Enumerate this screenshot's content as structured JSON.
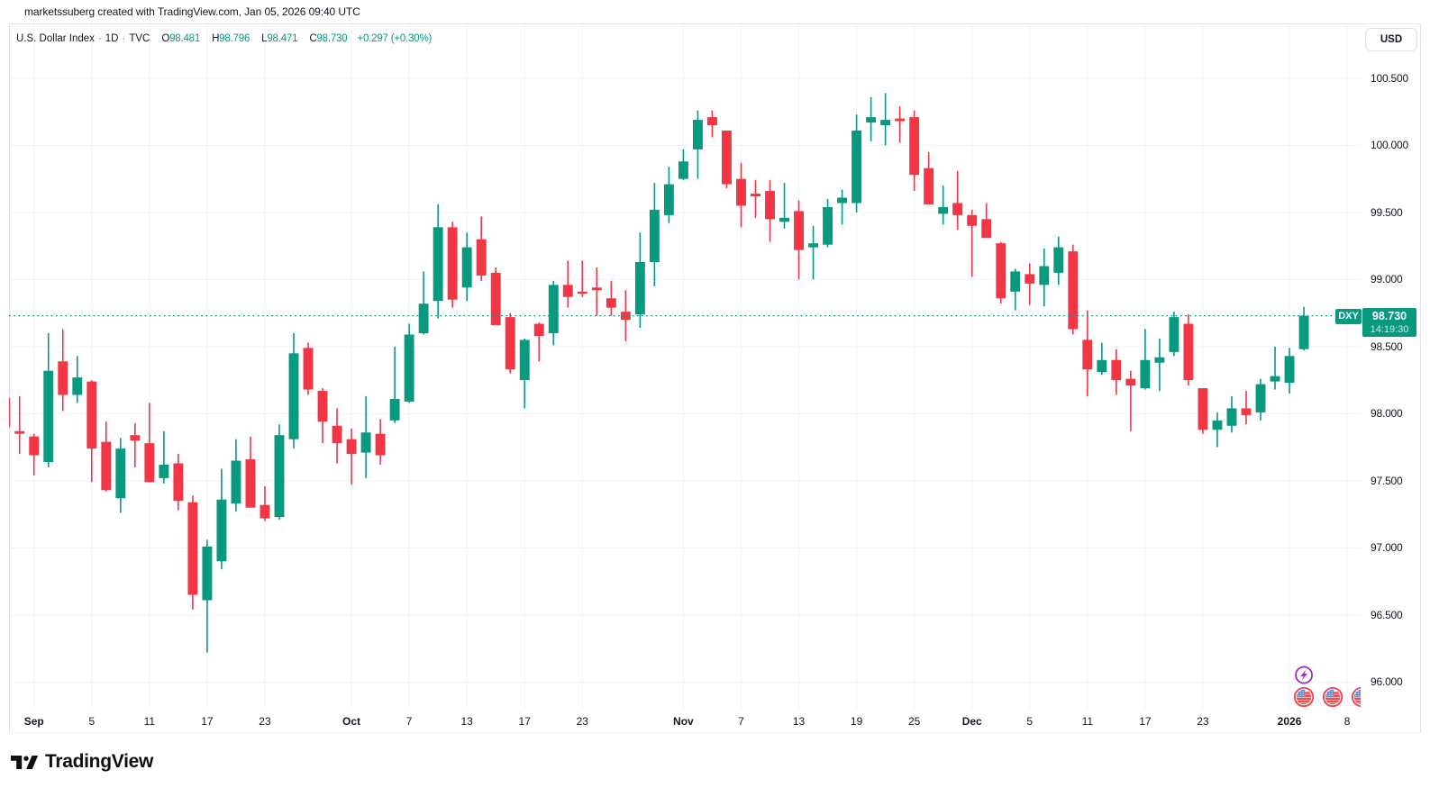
{
  "attribution": {
    "text": "marketssuberg created with TradingView.com, Jan 05, 2026 09:40 UTC"
  },
  "legend": {
    "symbol": "U.S. Dollar Index",
    "separator": "·",
    "interval": "1D",
    "exchange": "TVC",
    "ohlc": [
      {
        "key": "O",
        "value": "98.481"
      },
      {
        "key": "H",
        "value": "98.796"
      },
      {
        "key": "L",
        "value": "98.471"
      },
      {
        "key": "C",
        "value": "98.730"
      }
    ],
    "change": "+0.297 (+0.30%)"
  },
  "price_axis": {
    "currency_label": "USD",
    "tick_labels": [
      "100.500",
      "100.000",
      "99.500",
      "99.000",
      "98.500",
      "98.000",
      "97.500",
      "97.000",
      "96.500",
      "96.000"
    ],
    "tick_values": [
      100.5,
      100.0,
      99.5,
      99.0,
      98.5,
      98.0,
      97.5,
      97.0,
      96.5,
      96.0
    ],
    "last_price_marker": {
      "symbol": "DXY",
      "price": "98.730",
      "time": "14:19:30",
      "value": 98.73
    }
  },
  "time_axis": {
    "labels": [
      {
        "text": "Sep",
        "index": 2,
        "bold": true
      },
      {
        "text": "5",
        "index": 6,
        "bold": false
      },
      {
        "text": "11",
        "index": 10,
        "bold": false
      },
      {
        "text": "17",
        "index": 14,
        "bold": false
      },
      {
        "text": "23",
        "index": 18,
        "bold": false
      },
      {
        "text": "Oct",
        "index": 24,
        "bold": true
      },
      {
        "text": "7",
        "index": 28,
        "bold": false
      },
      {
        "text": "13",
        "index": 32,
        "bold": false
      },
      {
        "text": "17",
        "index": 36,
        "bold": false
      },
      {
        "text": "23",
        "index": 40,
        "bold": false
      },
      {
        "text": "Nov",
        "index": 47,
        "bold": true
      },
      {
        "text": "7",
        "index": 51,
        "bold": false
      },
      {
        "text": "13",
        "index": 55,
        "bold": false
      },
      {
        "text": "19",
        "index": 59,
        "bold": false
      },
      {
        "text": "25",
        "index": 63,
        "bold": false
      },
      {
        "text": "Dec",
        "index": 67,
        "bold": true
      },
      {
        "text": "5",
        "index": 71,
        "bold": false
      },
      {
        "text": "11",
        "index": 75,
        "bold": false
      },
      {
        "text": "17",
        "index": 79,
        "bold": false
      },
      {
        "text": "23",
        "index": 83,
        "bold": false
      },
      {
        "text": "2026",
        "index": 89,
        "bold": true
      },
      {
        "text": "8",
        "index": 93,
        "bold": false
      }
    ]
  },
  "markers": {
    "lightning_color": "#a22ac4",
    "flag_ring_color": "#f24350",
    "flag_blue": "#4087f5",
    "flag_red": "#f04e4e",
    "event_icons": [
      {
        "type": "lightning-icon",
        "index": 90,
        "row": "upper"
      },
      {
        "type": "us-flag-icon",
        "index": 90,
        "row": "lower"
      },
      {
        "type": "us-flag-icon",
        "index": 92,
        "row": "lower"
      },
      {
        "type": "us-flag-icon",
        "index": 94,
        "row": "lower"
      }
    ]
  },
  "chart_data": {
    "type": "candlestick",
    "title": "U.S. Dollar Index · 1D · TVC",
    "symbol": "DXY",
    "interval": "1D",
    "exchange": "TVC",
    "up_color": "#089981",
    "down_color": "#f23645",
    "grid": true,
    "ylim": [
      95.8,
      100.9
    ],
    "last_price_line": {
      "value": 98.73,
      "style": "dotted",
      "color": "#089981"
    },
    "candles": [
      {
        "date": "Aug 28",
        "o": 98.12,
        "h": 98.12,
        "l": 97.89,
        "c": 97.9
      },
      {
        "date": "Aug 29",
        "o": 97.87,
        "h": 98.13,
        "l": 97.7,
        "c": 97.85
      },
      {
        "date": "Sep 1",
        "o": 97.83,
        "h": 97.85,
        "l": 97.54,
        "c": 97.69
      },
      {
        "date": "Sep 2",
        "o": 97.64,
        "h": 98.6,
        "l": 97.6,
        "c": 98.32
      },
      {
        "date": "Sep 3",
        "o": 98.39,
        "h": 98.63,
        "l": 98.02,
        "c": 98.14
      },
      {
        "date": "Sep 4",
        "o": 98.14,
        "h": 98.43,
        "l": 98.08,
        "c": 98.27
      },
      {
        "date": "Sep 5",
        "o": 98.24,
        "h": 98.25,
        "l": 97.49,
        "c": 97.74
      },
      {
        "date": "Sep 8",
        "o": 97.79,
        "h": 97.94,
        "l": 97.42,
        "c": 97.43
      },
      {
        "date": "Sep 9",
        "o": 97.37,
        "h": 97.82,
        "l": 97.26,
        "c": 97.74
      },
      {
        "date": "Sep 10",
        "o": 97.84,
        "h": 97.93,
        "l": 97.6,
        "c": 97.8
      },
      {
        "date": "Sep 11",
        "o": 97.78,
        "h": 98.08,
        "l": 97.49,
        "c": 97.49
      },
      {
        "date": "Sep 12",
        "o": 97.52,
        "h": 97.87,
        "l": 97.48,
        "c": 97.62
      },
      {
        "date": "Sep 15",
        "o": 97.63,
        "h": 97.7,
        "l": 97.28,
        "c": 97.35
      },
      {
        "date": "Sep 16",
        "o": 97.34,
        "h": 97.39,
        "l": 96.54,
        "c": 96.65
      },
      {
        "date": "Sep 17",
        "o": 96.61,
        "h": 97.06,
        "l": 96.22,
        "c": 97.01
      },
      {
        "date": "Sep 18",
        "o": 96.9,
        "h": 97.59,
        "l": 96.84,
        "c": 97.36
      },
      {
        "date": "Sep 19",
        "o": 97.33,
        "h": 97.81,
        "l": 97.27,
        "c": 97.65
      },
      {
        "date": "Sep 22",
        "o": 97.66,
        "h": 97.83,
        "l": 97.3,
        "c": 97.3
      },
      {
        "date": "Sep 23",
        "o": 97.32,
        "h": 97.46,
        "l": 97.2,
        "c": 97.22
      },
      {
        "date": "Sep 24",
        "o": 97.23,
        "h": 97.92,
        "l": 97.21,
        "c": 97.84
      },
      {
        "date": "Sep 25",
        "o": 97.81,
        "h": 98.6,
        "l": 97.74,
        "c": 98.45
      },
      {
        "date": "Sep 26",
        "o": 98.49,
        "h": 98.53,
        "l": 98.14,
        "c": 98.18
      },
      {
        "date": "Sep 29",
        "o": 98.17,
        "h": 98.19,
        "l": 97.78,
        "c": 97.94
      },
      {
        "date": "Sep 30",
        "o": 97.91,
        "h": 98.04,
        "l": 97.63,
        "c": 97.78
      },
      {
        "date": "Oct 1",
        "o": 97.81,
        "h": 97.89,
        "l": 97.47,
        "c": 97.7
      },
      {
        "date": "Oct 2",
        "o": 97.71,
        "h": 98.13,
        "l": 97.52,
        "c": 97.86
      },
      {
        "date": "Oct 3",
        "o": 97.85,
        "h": 97.96,
        "l": 97.62,
        "c": 97.69
      },
      {
        "date": "Oct 6",
        "o": 97.95,
        "h": 98.5,
        "l": 97.93,
        "c": 98.11
      },
      {
        "date": "Oct 7",
        "o": 98.09,
        "h": 98.67,
        "l": 98.08,
        "c": 98.59
      },
      {
        "date": "Oct 8",
        "o": 98.6,
        "h": 99.06,
        "l": 98.59,
        "c": 98.82
      },
      {
        "date": "Oct 9",
        "o": 98.84,
        "h": 99.56,
        "l": 98.71,
        "c": 99.39
      },
      {
        "date": "Oct 10",
        "o": 99.39,
        "h": 99.43,
        "l": 98.79,
        "c": 98.85
      },
      {
        "date": "Oct 13",
        "o": 98.94,
        "h": 99.35,
        "l": 98.84,
        "c": 99.24
      },
      {
        "date": "Oct 14",
        "o": 99.3,
        "h": 99.47,
        "l": 98.99,
        "c": 99.03
      },
      {
        "date": "Oct 15",
        "o": 99.05,
        "h": 99.09,
        "l": 98.66,
        "c": 98.66
      },
      {
        "date": "Oct 16",
        "o": 98.72,
        "h": 98.75,
        "l": 98.3,
        "c": 98.33
      },
      {
        "date": "Oct 17",
        "o": 98.25,
        "h": 98.56,
        "l": 98.04,
        "c": 98.55
      },
      {
        "date": "Oct 20",
        "o": 98.67,
        "h": 98.68,
        "l": 98.39,
        "c": 98.58
      },
      {
        "date": "Oct 21",
        "o": 98.6,
        "h": 98.99,
        "l": 98.51,
        "c": 98.96
      },
      {
        "date": "Oct 22",
        "o": 98.96,
        "h": 99.14,
        "l": 98.79,
        "c": 98.87
      },
      {
        "date": "Oct 23",
        "o": 98.91,
        "h": 99.14,
        "l": 98.87,
        "c": 98.9
      },
      {
        "date": "Oct 24",
        "o": 98.94,
        "h": 99.09,
        "l": 98.73,
        "c": 98.92
      },
      {
        "date": "Oct 27",
        "o": 98.86,
        "h": 98.99,
        "l": 98.73,
        "c": 98.79
      },
      {
        "date": "Oct 28",
        "o": 98.76,
        "h": 98.92,
        "l": 98.54,
        "c": 98.7
      },
      {
        "date": "Oct 29",
        "o": 98.74,
        "h": 99.35,
        "l": 98.64,
        "c": 99.13
      },
      {
        "date": "Oct 30",
        "o": 99.13,
        "h": 99.72,
        "l": 98.95,
        "c": 99.52
      },
      {
        "date": "Oct 31",
        "o": 99.48,
        "h": 99.84,
        "l": 99.42,
        "c": 99.71
      },
      {
        "date": "Nov 3",
        "o": 99.75,
        "h": 99.97,
        "l": 99.74,
        "c": 99.88
      },
      {
        "date": "Nov 4",
        "o": 99.97,
        "h": 100.26,
        "l": 99.75,
        "c": 100.19
      },
      {
        "date": "Nov 5",
        "o": 100.21,
        "h": 100.26,
        "l": 100.06,
        "c": 100.15
      },
      {
        "date": "Nov 6",
        "o": 100.11,
        "h": 100.11,
        "l": 99.68,
        "c": 99.71
      },
      {
        "date": "Nov 7",
        "o": 99.75,
        "h": 99.87,
        "l": 99.39,
        "c": 99.55
      },
      {
        "date": "Nov 10",
        "o": 99.64,
        "h": 99.74,
        "l": 99.46,
        "c": 99.62
      },
      {
        "date": "Nov 11",
        "o": 99.66,
        "h": 99.74,
        "l": 99.28,
        "c": 99.45
      },
      {
        "date": "Nov 12",
        "o": 99.43,
        "h": 99.72,
        "l": 99.38,
        "c": 99.46
      },
      {
        "date": "Nov 13",
        "o": 99.51,
        "h": 99.59,
        "l": 99.0,
        "c": 99.22
      },
      {
        "date": "Nov 14",
        "o": 99.24,
        "h": 99.4,
        "l": 99.0,
        "c": 99.27
      },
      {
        "date": "Nov 17",
        "o": 99.26,
        "h": 99.6,
        "l": 99.24,
        "c": 99.54
      },
      {
        "date": "Nov 18",
        "o": 99.57,
        "h": 99.67,
        "l": 99.41,
        "c": 99.61
      },
      {
        "date": "Nov 19",
        "o": 99.57,
        "h": 100.23,
        "l": 99.5,
        "c": 100.11
      },
      {
        "date": "Nov 20",
        "o": 100.17,
        "h": 100.36,
        "l": 100.03,
        "c": 100.21
      },
      {
        "date": "Nov 21",
        "o": 100.15,
        "h": 100.39,
        "l": 100.0,
        "c": 100.19
      },
      {
        "date": "Nov 24",
        "o": 100.2,
        "h": 100.29,
        "l": 100.02,
        "c": 100.18
      },
      {
        "date": "Nov 25",
        "o": 100.21,
        "h": 100.26,
        "l": 99.66,
        "c": 99.78
      },
      {
        "date": "Nov 26",
        "o": 99.83,
        "h": 99.95,
        "l": 99.56,
        "c": 99.56
      },
      {
        "date": "Nov 27",
        "o": 99.49,
        "h": 99.7,
        "l": 99.41,
        "c": 99.54
      },
      {
        "date": "Nov 28",
        "o": 99.57,
        "h": 99.81,
        "l": 99.37,
        "c": 99.48
      },
      {
        "date": "Dec 1",
        "o": 99.48,
        "h": 99.52,
        "l": 99.02,
        "c": 99.4
      },
      {
        "date": "Dec 2",
        "o": 99.45,
        "h": 99.57,
        "l": 99.31,
        "c": 99.31
      },
      {
        "date": "Dec 3",
        "o": 99.27,
        "h": 99.28,
        "l": 98.82,
        "c": 98.86
      },
      {
        "date": "Dec 4",
        "o": 98.91,
        "h": 99.08,
        "l": 98.77,
        "c": 99.06
      },
      {
        "date": "Dec 5",
        "o": 99.04,
        "h": 99.12,
        "l": 98.81,
        "c": 98.97
      },
      {
        "date": "Dec 8",
        "o": 98.96,
        "h": 99.23,
        "l": 98.8,
        "c": 99.1
      },
      {
        "date": "Dec 9",
        "o": 99.05,
        "h": 99.32,
        "l": 98.96,
        "c": 99.24
      },
      {
        "date": "Dec 10",
        "o": 99.21,
        "h": 99.26,
        "l": 98.59,
        "c": 98.63
      },
      {
        "date": "Dec 11",
        "o": 98.55,
        "h": 98.77,
        "l": 98.13,
        "c": 98.33
      },
      {
        "date": "Dec 12",
        "o": 98.31,
        "h": 98.53,
        "l": 98.29,
        "c": 98.4
      },
      {
        "date": "Dec 15",
        "o": 98.4,
        "h": 98.48,
        "l": 98.14,
        "c": 98.25
      },
      {
        "date": "Dec 16",
        "o": 98.26,
        "h": 98.32,
        "l": 97.87,
        "c": 98.21
      },
      {
        "date": "Dec 17",
        "o": 98.19,
        "h": 98.63,
        "l": 98.18,
        "c": 98.4
      },
      {
        "date": "Dec 18",
        "o": 98.38,
        "h": 98.56,
        "l": 98.17,
        "c": 98.42
      },
      {
        "date": "Dec 19",
        "o": 98.46,
        "h": 98.76,
        "l": 98.43,
        "c": 98.72
      },
      {
        "date": "Dec 22",
        "o": 98.67,
        "h": 98.74,
        "l": 98.21,
        "c": 98.25
      },
      {
        "date": "Dec 23",
        "o": 98.19,
        "h": 98.19,
        "l": 97.85,
        "c": 97.88
      },
      {
        "date": "Dec 24",
        "o": 97.88,
        "h": 98.01,
        "l": 97.75,
        "c": 97.95
      },
      {
        "date": "Dec 26",
        "o": 97.91,
        "h": 98.13,
        "l": 97.86,
        "c": 98.04
      },
      {
        "date": "Dec 29",
        "o": 98.04,
        "h": 98.17,
        "l": 97.92,
        "c": 97.99
      },
      {
        "date": "Dec 30",
        "o": 98.01,
        "h": 98.26,
        "l": 97.95,
        "c": 98.22
      },
      {
        "date": "Dec 31",
        "o": 98.24,
        "h": 98.5,
        "l": 98.18,
        "c": 98.28
      },
      {
        "date": "Jan 2",
        "o": 98.23,
        "h": 98.49,
        "l": 98.15,
        "c": 98.43
      },
      {
        "date": "Jan 5",
        "o": 98.481,
        "h": 98.796,
        "l": 98.471,
        "c": 98.73
      }
    ]
  },
  "logo": {
    "text": "TradingView"
  }
}
